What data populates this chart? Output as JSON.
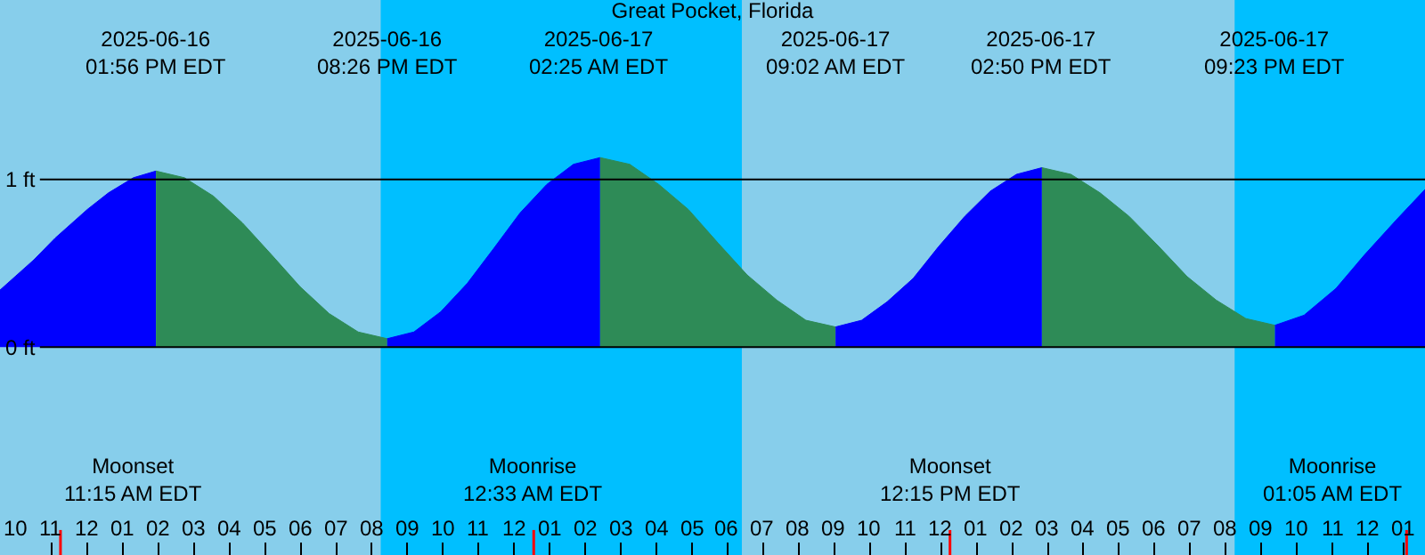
{
  "chart_data": {
    "type": "area",
    "title": "Great Pocket, Florida",
    "xlim": [
      "2025-06-16T09:33",
      "2025-06-18T01:36"
    ],
    "ylim": [
      -1.24,
      2.07
    ],
    "xticks": [
      {
        "value": "2025-06-16T10:00",
        "label": "10"
      },
      {
        "value": "2025-06-16T11:00",
        "label": "11"
      },
      {
        "value": "2025-06-16T12:00",
        "label": "12"
      },
      {
        "value": "2025-06-16T13:00",
        "label": "01"
      },
      {
        "value": "2025-06-16T14:00",
        "label": "02"
      },
      {
        "value": "2025-06-16T15:00",
        "label": "03"
      },
      {
        "value": "2025-06-16T16:00",
        "label": "04"
      },
      {
        "value": "2025-06-16T17:00",
        "label": "05"
      },
      {
        "value": "2025-06-16T18:00",
        "label": "06"
      },
      {
        "value": "2025-06-16T19:00",
        "label": "07"
      },
      {
        "value": "2025-06-16T20:00",
        "label": "08"
      },
      {
        "value": "2025-06-16T21:00",
        "label": "09"
      },
      {
        "value": "2025-06-16T22:00",
        "label": "10"
      },
      {
        "value": "2025-06-16T23:00",
        "label": "11"
      },
      {
        "value": "2025-06-17T00:00",
        "label": "12"
      },
      {
        "value": "2025-06-17T01:00",
        "label": "01"
      },
      {
        "value": "2025-06-17T02:00",
        "label": "02"
      },
      {
        "value": "2025-06-17T03:00",
        "label": "03"
      },
      {
        "value": "2025-06-17T04:00",
        "label": "04"
      },
      {
        "value": "2025-06-17T05:00",
        "label": "05"
      },
      {
        "value": "2025-06-17T06:00",
        "label": "06"
      },
      {
        "value": "2025-06-17T07:00",
        "label": "07"
      },
      {
        "value": "2025-06-17T08:00",
        "label": "08"
      },
      {
        "value": "2025-06-17T09:00",
        "label": "09"
      },
      {
        "value": "2025-06-17T10:00",
        "label": "10"
      },
      {
        "value": "2025-06-17T11:00",
        "label": "11"
      },
      {
        "value": "2025-06-17T12:00",
        "label": "12"
      },
      {
        "value": "2025-06-17T13:00",
        "label": "01"
      },
      {
        "value": "2025-06-17T14:00",
        "label": "02"
      },
      {
        "value": "2025-06-17T15:00",
        "label": "03"
      },
      {
        "value": "2025-06-17T16:00",
        "label": "04"
      },
      {
        "value": "2025-06-17T17:00",
        "label": "05"
      },
      {
        "value": "2025-06-17T18:00",
        "label": "06"
      },
      {
        "value": "2025-06-17T19:00",
        "label": "07"
      },
      {
        "value": "2025-06-17T20:00",
        "label": "08"
      },
      {
        "value": "2025-06-17T21:00",
        "label": "09"
      },
      {
        "value": "2025-06-17T22:00",
        "label": "10"
      },
      {
        "value": "2025-06-17T23:00",
        "label": "11"
      },
      {
        "value": "2025-06-18T00:00",
        "label": "12"
      },
      {
        "value": "2025-06-18T01:00",
        "label": "01"
      }
    ],
    "yticks": [
      {
        "value": 0,
        "label": "0 ft"
      },
      {
        "value": 1,
        "label": "1 ft"
      }
    ],
    "grid": "y",
    "series": [
      {
        "color": "#0000ff",
        "x": [
          "2025-06-16T09:33",
          "2025-06-16T10:30",
          "2025-06-16T11:06",
          "2025-06-16T12:00",
          "2025-06-16T12:36",
          "2025-06-16T13:18",
          "2025-06-16T13:56"
        ],
        "values": [
          0.34,
          0.52,
          0.65,
          0.82,
          0.92,
          1.01,
          1.05
        ]
      },
      {
        "color": "#2e8b57",
        "x": [
          "2025-06-16T13:56",
          "2025-06-16T14:44",
          "2025-06-16T15:33",
          "2025-06-16T16:22",
          "2025-06-16T17:11",
          "2025-06-16T17:59",
          "2025-06-16T18:48",
          "2025-06-16T19:37",
          "2025-06-16T20:26"
        ],
        "values": [
          1.05,
          1.01,
          0.9,
          0.74,
          0.55,
          0.36,
          0.2,
          0.09,
          0.05
        ]
      },
      {
        "color": "#0000ff",
        "x": [
          "2025-06-16T20:26",
          "2025-06-16T21:11",
          "2025-06-16T21:56",
          "2025-06-16T22:41",
          "2025-06-16T23:26",
          "2025-06-17T00:10",
          "2025-06-17T00:55",
          "2025-06-17T01:40",
          "2025-06-17T02:25"
        ],
        "values": [
          0.05,
          0.09,
          0.21,
          0.38,
          0.59,
          0.8,
          0.97,
          1.09,
          1.13
        ]
      },
      {
        "color": "#2e8b57",
        "x": [
          "2025-06-17T02:25",
          "2025-06-17T03:15",
          "2025-06-17T04:04",
          "2025-06-17T04:54",
          "2025-06-17T05:44",
          "2025-06-17T06:33",
          "2025-06-17T07:23",
          "2025-06-17T08:12",
          "2025-06-17T09:02"
        ],
        "values": [
          1.13,
          1.09,
          0.97,
          0.82,
          0.62,
          0.43,
          0.28,
          0.16,
          0.12
        ]
      },
      {
        "color": "#0000ff",
        "x": [
          "2025-06-17T09:02",
          "2025-06-17T09:46",
          "2025-06-17T10:29",
          "2025-06-17T11:13",
          "2025-06-17T11:56",
          "2025-06-17T12:40",
          "2025-06-17T13:23",
          "2025-06-17T14:07",
          "2025-06-17T14:50"
        ],
        "values": [
          0.12,
          0.16,
          0.27,
          0.41,
          0.6,
          0.78,
          0.93,
          1.03,
          1.07
        ]
      },
      {
        "color": "#2e8b57",
        "x": [
          "2025-06-17T14:50",
          "2025-06-17T15:39",
          "2025-06-17T16:28",
          "2025-06-17T17:17",
          "2025-06-17T18:07",
          "2025-06-17T18:55",
          "2025-06-17T19:44",
          "2025-06-17T20:34",
          "2025-06-17T21:23"
        ],
        "values": [
          1.07,
          1.03,
          0.92,
          0.78,
          0.6,
          0.42,
          0.28,
          0.17,
          0.13
        ]
      },
      {
        "color": "#0000ff",
        "x": [
          "2025-06-17T21:23",
          "2025-06-17T22:12",
          "2025-06-17T23:06",
          "2025-06-17T23:54",
          "2025-06-18T00:48",
          "2025-06-18T01:36"
        ],
        "values": [
          0.13,
          0.19,
          0.35,
          0.55,
          0.76,
          0.94
        ]
      }
    ],
    "bands": [
      {
        "axis": "x",
        "from": "2025-06-16T20:15",
        "to": "2025-06-17T06:24",
        "color": "#00bfff"
      },
      {
        "axis": "x",
        "from": "2025-06-17T20:15",
        "to": "2025-06-18T01:36",
        "color": "#00bfff"
      }
    ],
    "ref_lines": [
      {
        "axis": "x",
        "value": "2025-06-16T11:15",
        "label": "Moonset\n11:15 AM EDT",
        "color": "#ff0000"
      },
      {
        "axis": "x",
        "value": "2025-06-17T00:33",
        "label": "Moonrise\n12:33 AM EDT",
        "color": "#ff0000"
      },
      {
        "axis": "x",
        "value": "2025-06-17T12:15",
        "label": "Moonset\n12:15 PM EDT",
        "color": "#ff0000"
      },
      {
        "axis": "x",
        "value": "2025-06-18T01:05",
        "label": "Moonrise\n01:05 AM EDT",
        "color": "#ff0000"
      }
    ],
    "annotations": [
      "2025-06-16\n01:56 PM EDT",
      "2025-06-16\n08:26 PM EDT",
      "2025-06-17\n02:25 AM EDT",
      "2025-06-17\n09:02 AM EDT",
      "2025-06-17\n02:50 PM EDT",
      "2025-06-17\n09:23 PM EDT"
    ]
  }
}
